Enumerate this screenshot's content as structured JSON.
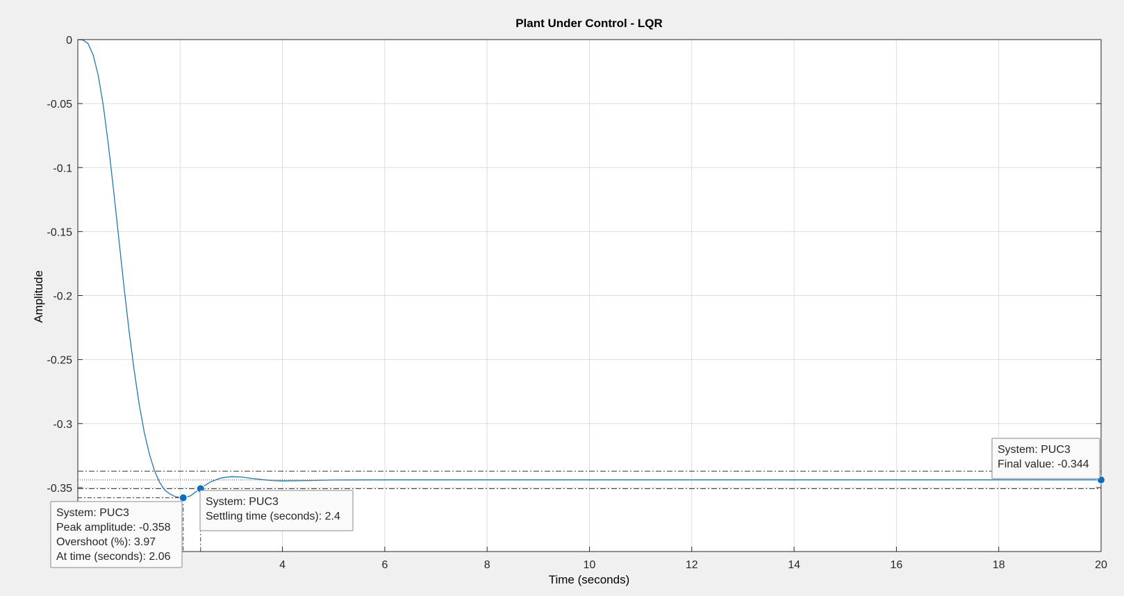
{
  "chart_data": {
    "type": "line",
    "title": "Plant Under Control - LQR",
    "xlabel": "Time (seconds)",
    "ylabel": "Amplitude",
    "xlim": [
      0,
      20
    ],
    "ylim": [
      -0.4,
      0
    ],
    "grid": true,
    "x_ticks": [
      2,
      4,
      6,
      8,
      10,
      12,
      14,
      16,
      18,
      20
    ],
    "x_tick_labels": [
      "",
      "4",
      "6",
      "8",
      "10",
      "12",
      "14",
      "16",
      "18",
      "20"
    ],
    "y_ticks": [
      0,
      -0.05,
      -0.1,
      -0.15,
      -0.2,
      -0.25,
      -0.3,
      -0.35
    ],
    "y_tick_labels": [
      "0",
      "-0.05",
      "-0.1",
      "-0.15",
      "-0.2",
      "-0.25",
      "-0.3",
      "-0.35"
    ],
    "series": [
      {
        "color": "#1f77b4",
        "x": [
          0,
          0.1,
          0.2,
          0.3,
          0.4,
          0.5,
          0.6,
          0.7,
          0.8,
          0.9,
          1.0,
          1.1,
          1.2,
          1.3,
          1.4,
          1.5,
          1.6,
          1.7,
          1.8,
          1.9,
          2.0,
          2.06,
          2.2,
          2.4,
          2.6,
          2.8,
          3.0,
          3.2,
          3.4,
          3.6,
          3.8,
          4.0,
          4.5,
          5.0,
          6.0,
          8.0,
          10.0,
          12.0,
          14.0,
          16.0,
          18.0,
          20.0
        ],
        "y": [
          0,
          -0.0003,
          -0.003,
          -0.012,
          -0.028,
          -0.052,
          -0.083,
          -0.118,
          -0.155,
          -0.192,
          -0.227,
          -0.258,
          -0.285,
          -0.307,
          -0.324,
          -0.337,
          -0.346,
          -0.352,
          -0.355,
          -0.357,
          -0.3578,
          -0.358,
          -0.3565,
          -0.3505,
          -0.3455,
          -0.3425,
          -0.3415,
          -0.3418,
          -0.3428,
          -0.3438,
          -0.3445,
          -0.3448,
          -0.3445,
          -0.3441,
          -0.344,
          -0.344,
          -0.344,
          -0.344,
          -0.344,
          -0.344,
          -0.344,
          -0.344
        ]
      }
    ],
    "reference_lines": {
      "final_value": -0.344,
      "settling_upper": -0.3372,
      "settling_lower": -0.3509,
      "peak": -0.358
    },
    "markers": [
      {
        "x": 2.06,
        "y": -0.358
      },
      {
        "x": 2.4,
        "y": -0.3509
      },
      {
        "x": 20,
        "y": -0.344
      }
    ],
    "annotations": [
      {
        "lines": [
          "System: PUC3",
          "Peak amplitude: -0.358",
          "Overshoot (%): 3.97",
          "At time (seconds): 2.06"
        ]
      },
      {
        "lines": [
          "System: PUC3",
          "Settling time (seconds): 2.4"
        ]
      },
      {
        "lines": [
          "System: PUC3",
          "Final value: -0.344"
        ]
      }
    ]
  }
}
